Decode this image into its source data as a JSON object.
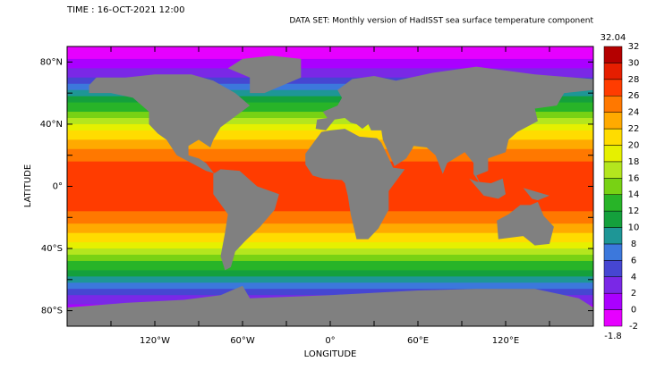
{
  "header": {
    "time": "TIME : 16-OCT-2021 12:00",
    "dataset": "DATA SET: Monthly version of HadISST sea surface temperature component"
  },
  "axes": {
    "y_label": "LATITUDE",
    "x_label": "LONGITUDE",
    "yticks": [
      "80°N",
      "40°N",
      "0°",
      "40°S",
      "80°S"
    ],
    "xticks": [
      "120°W",
      "60°W",
      "0°",
      "60°E",
      "120°E"
    ]
  },
  "colorbar": {
    "max": 32.04,
    "min": -1.8,
    "levels": [
      -2,
      0,
      2,
      4,
      6,
      8,
      10,
      12,
      14,
      16,
      18,
      20,
      22,
      24,
      26,
      28,
      30,
      32
    ],
    "colors": [
      "#e600ff",
      "#aa00ff",
      "#7a28e6",
      "#4646d2",
      "#3c78dc",
      "#1e9696",
      "#14a03c",
      "#28b428",
      "#78d214",
      "#b4e61e",
      "#e6f000",
      "#ffdc00",
      "#ffaa00",
      "#ff7800",
      "#ff3c00",
      "#e61e00",
      "#b40000"
    ]
  }
}
